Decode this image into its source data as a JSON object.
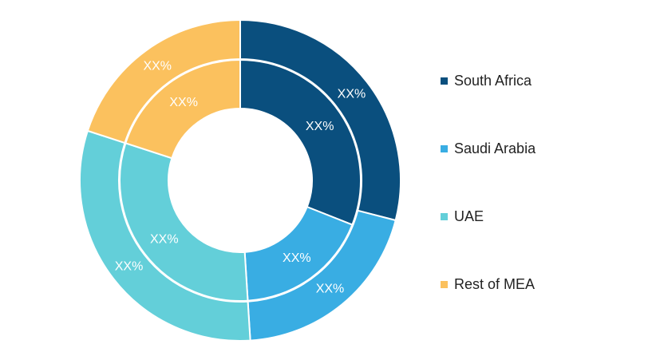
{
  "chart_data": {
    "type": "pie",
    "variant": "nested-donut",
    "categories": [
      "South Africa",
      "Saudi Arabia",
      "UAE",
      "Rest of MEA"
    ],
    "colors": [
      "#0a4f7e",
      "#39ade3",
      "#63cfd9",
      "#fbc15e"
    ],
    "series": [
      {
        "ring": "outer",
        "values": [
          29,
          20,
          31,
          20
        ],
        "labels": [
          "XX%",
          "XX%",
          "XX%",
          "XX%"
        ]
      },
      {
        "ring": "inner",
        "values": [
          31,
          18,
          31,
          20
        ],
        "labels": [
          "XX%",
          "XX%",
          "XX%",
          "XX%"
        ]
      }
    ],
    "legend_position": "right"
  }
}
